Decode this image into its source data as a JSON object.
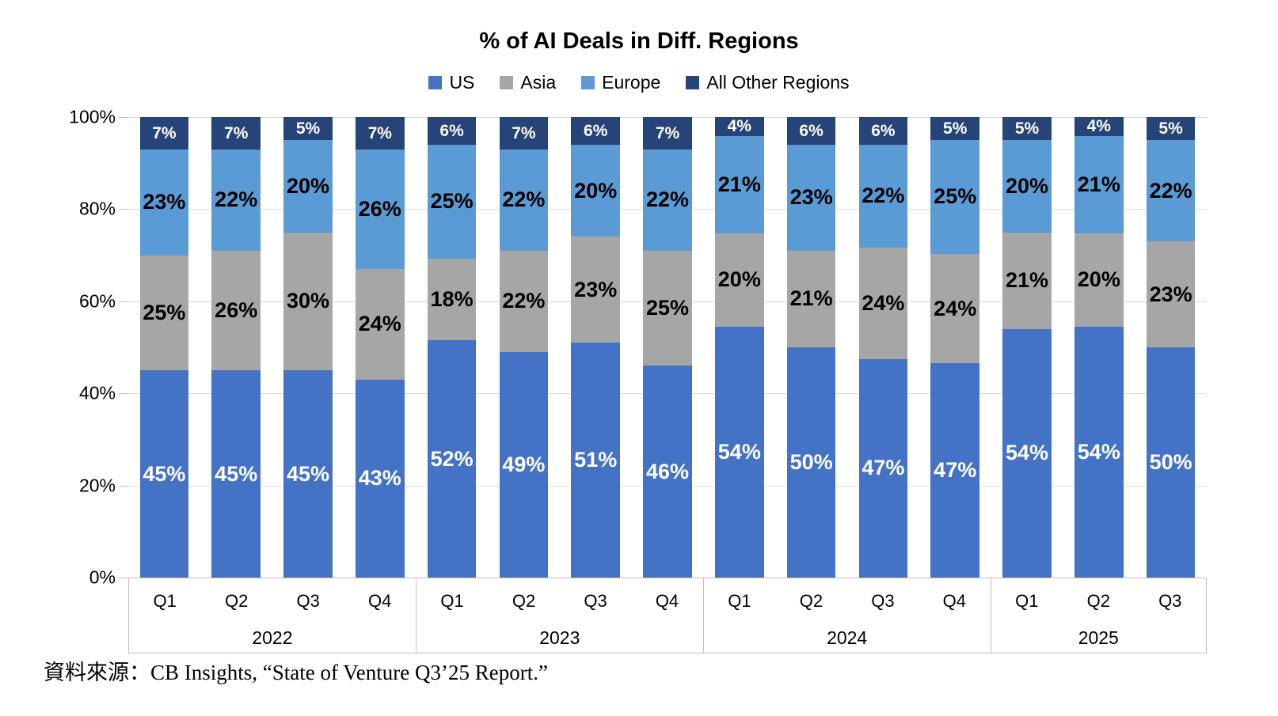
{
  "title": "% of AI Deals in Diff. Regions",
  "source_note": "資料來源：CB Insights, “State of Venture Q3’25 Report.”",
  "chart_data": {
    "type": "bar",
    "stacked": true,
    "percent_stacked": true,
    "title": "% of AI Deals in Diff. Regions",
    "legend_position": "top",
    "grid": true,
    "categories": [
      "Q1",
      "Q2",
      "Q3",
      "Q4",
      "Q1",
      "Q2",
      "Q3",
      "Q4",
      "Q1",
      "Q2",
      "Q3",
      "Q4",
      "Q1",
      "Q2",
      "Q3"
    ],
    "year_groups": [
      {
        "year": "2022",
        "quarters": [
          "Q1",
          "Q2",
          "Q3",
          "Q4"
        ]
      },
      {
        "year": "2023",
        "quarters": [
          "Q1",
          "Q2",
          "Q3",
          "Q4"
        ]
      },
      {
        "year": "2024",
        "quarters": [
          "Q1",
          "Q2",
          "Q3",
          "Q4"
        ]
      },
      {
        "year": "2025",
        "quarters": [
          "Q1",
          "Q2",
          "Q3"
        ]
      }
    ],
    "series": [
      {
        "name": "US",
        "color": "#4472C4",
        "label_color": "#FFFFFF",
        "values": [
          45,
          45,
          45,
          43,
          52,
          49,
          51,
          46,
          54,
          50,
          47,
          47,
          54,
          54,
          50
        ]
      },
      {
        "name": "Asia",
        "color": "#A6A6A6",
        "label_color": "#000000",
        "values": [
          25,
          26,
          30,
          24,
          18,
          22,
          23,
          25,
          20,
          21,
          24,
          24,
          21,
          20,
          23
        ]
      },
      {
        "name": "Europe",
        "color": "#5B9BD5",
        "label_color": "#000000",
        "values": [
          23,
          22,
          20,
          26,
          25,
          22,
          20,
          22,
          21,
          23,
          22,
          25,
          20,
          21,
          22
        ]
      },
      {
        "name": "All Other Regions",
        "color": "#264478",
        "label_color": "#FFFFFF",
        "values": [
          7,
          7,
          5,
          7,
          6,
          7,
          6,
          7,
          4,
          6,
          6,
          5,
          5,
          4,
          5
        ]
      }
    ],
    "data_label_suffix": "%",
    "y_axis": {
      "min": 0,
      "max": 100,
      "ticks": [
        "100%",
        "80%",
        "60%",
        "40%",
        "20%",
        "0%"
      ]
    }
  }
}
